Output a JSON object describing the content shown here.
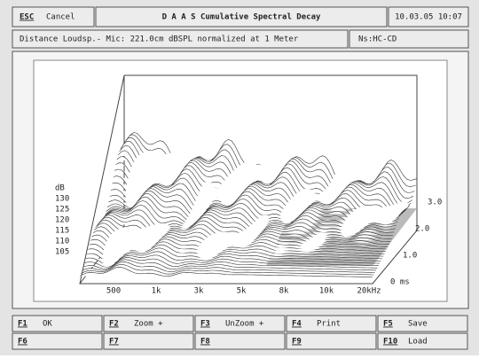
{
  "header": {
    "escape": "ESC",
    "cancel": "Cancel",
    "title": "D A A S  Cumulative Spectral Decay",
    "datetime": "10.03.05 10:07"
  },
  "info": {
    "text": "Distance Loudsp.- Mic: 221.0cm dBSPL normalized at 1 Meter",
    "file": "Ns:HC-CD"
  },
  "plot": {
    "y_unit": "dB",
    "y_labels": [
      "130",
      "125",
      "120",
      "115",
      "110",
      "105"
    ],
    "x_labels": [
      "500",
      "1k",
      "3k",
      "5k",
      "8k",
      "10k",
      "20kHz"
    ],
    "z_labels": [
      "3.0",
      "2.0",
      "1.0",
      "0 ms"
    ]
  },
  "buttons": [
    [
      {
        "key": "F1",
        "label": "OK"
      },
      {
        "key": "F2",
        "label": "Zoom +"
      },
      {
        "key": "F3",
        "label": "UnZoom +"
      },
      {
        "key": "F4",
        "label": "Print"
      },
      {
        "key": "F5",
        "label": "Save"
      }
    ],
    [
      {
        "key": "F6",
        "label": ""
      },
      {
        "key": "F7",
        "label": ""
      },
      {
        "key": "F8",
        "label": ""
      },
      {
        "key": "F9",
        "label": ""
      },
      {
        "key": "F10",
        "label": "Load"
      }
    ]
  ]
}
